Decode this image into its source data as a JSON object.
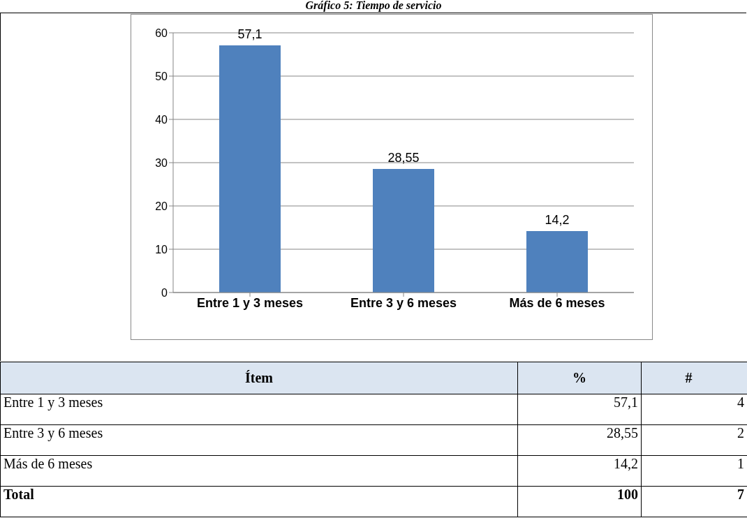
{
  "chart_data": {
    "type": "bar",
    "title": "Gráfico 5: Tiempo de servicio",
    "categories": [
      "Entre 1 y 3 meses",
      "Entre 3 y 6 meses",
      "Más de 6 meses"
    ],
    "values": [
      57.1,
      28.55,
      14.2
    ],
    "value_labels": [
      "57,1",
      "28,55",
      "14,2"
    ],
    "color": "#4f81bd",
    "ylim": [
      0,
      60
    ],
    "yticks": [
      0,
      10,
      20,
      30,
      40,
      50,
      60
    ],
    "grid": "y",
    "annotations": [
      "Ítem",
      "%",
      "#",
      "Total",
      "100",
      "4",
      "2",
      "1",
      "7"
    ]
  }
}
